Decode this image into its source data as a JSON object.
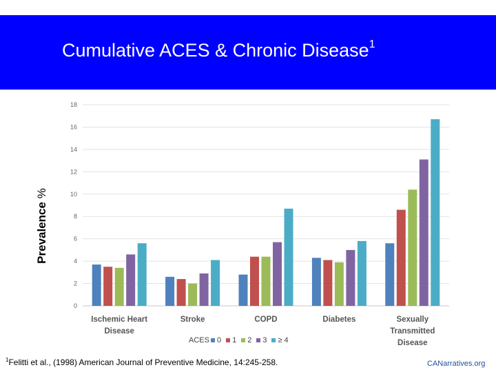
{
  "header": {
    "title": "Cumulative ACES & Chronic Disease",
    "title_sup": "1",
    "background": "#0000ff"
  },
  "ylabel_main": "Prevalence",
  "ylabel_unit": "%",
  "chart_data": {
    "type": "bar",
    "title": "",
    "xlabel": "",
    "ylabel": "Prevalence %",
    "ylim": [
      0,
      18
    ],
    "yticks": [
      0,
      2,
      4,
      6,
      8,
      10,
      12,
      14,
      16,
      18
    ],
    "grid": true,
    "categories": [
      [
        "Ischemic Heart",
        "Disease"
      ],
      [
        "Stroke"
      ],
      [
        "COPD"
      ],
      [
        "Diabetes"
      ],
      [
        "Sexually",
        "Transmitted",
        "Disease"
      ]
    ],
    "legend_title": "ACES",
    "series": [
      {
        "name": "0",
        "color": "#4f81bd",
        "values": [
          3.7,
          2.6,
          2.8,
          4.3,
          5.6
        ]
      },
      {
        "name": "1",
        "color": "#c0504d",
        "values": [
          3.5,
          2.4,
          4.4,
          4.1,
          8.6
        ]
      },
      {
        "name": "2",
        "color": "#9bbb59",
        "values": [
          3.4,
          2.0,
          4.4,
          3.9,
          10.4
        ]
      },
      {
        "name": "3",
        "color": "#8064a2",
        "values": [
          4.6,
          2.9,
          5.7,
          5.0,
          13.1
        ]
      },
      {
        "name": "≥ 4",
        "color": "#4bacc6",
        "values": [
          5.6,
          4.1,
          8.7,
          5.8,
          16.7
        ]
      }
    ]
  },
  "citation": {
    "sup": "1",
    "text": "Felitti et al., (1998) American Journal of Preventive Medicine, 14:245-258."
  },
  "brand": "CANarratives.org"
}
